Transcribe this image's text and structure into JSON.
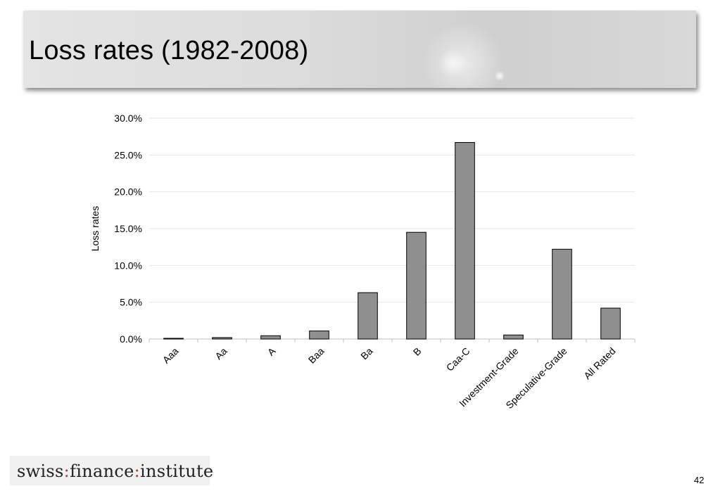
{
  "slide": {
    "title": "Loss rates (1982-2008)",
    "page_number": "42"
  },
  "logo": {
    "part1": "swiss",
    "sep1": ":",
    "part2": "finance",
    "sep2": ":",
    "part3": "institute"
  },
  "chart_data": {
    "type": "bar",
    "title": "",
    "xlabel": "",
    "ylabel": "Loss rates",
    "categories": [
      "Aaa",
      "Aa",
      "A",
      "Baa",
      "Ba",
      "B",
      "Caa-C",
      "Investment-Grade",
      "Speculative-Grade",
      "All Rated"
    ],
    "values": [
      0.1,
      0.2,
      0.45,
      1.1,
      6.3,
      14.5,
      26.7,
      0.55,
      12.2,
      4.2
    ],
    "ylim": [
      0,
      30
    ],
    "yticks": [
      0,
      5,
      10,
      15,
      20,
      25,
      30
    ],
    "ytick_labels": [
      "0.0%",
      "5.0%",
      "10.0%",
      "15.0%",
      "20.0%",
      "25.0%",
      "30.0%"
    ],
    "grid": true,
    "legend": "none",
    "colors": {
      "bar_fill": "#8f8f8f",
      "bar_stroke": "#000000",
      "grid": "#e6e6e6"
    }
  }
}
